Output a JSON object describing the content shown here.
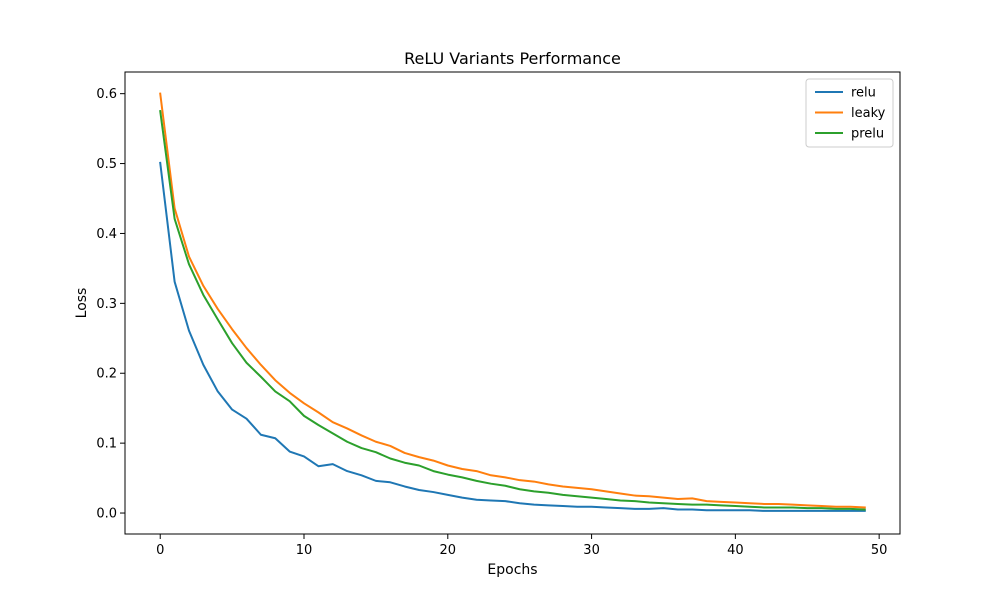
{
  "chart_data": {
    "type": "line",
    "title": "ReLU Variants Performance",
    "xlabel": "Epochs",
    "ylabel": "Loss",
    "xlim": [
      -2.45,
      51.45
    ],
    "ylim": [
      -0.03,
      0.631
    ],
    "x_ticks": [
      0,
      10,
      20,
      30,
      40,
      50
    ],
    "y_ticks": [
      0.0,
      0.1,
      0.2,
      0.3,
      0.4,
      0.5,
      0.6
    ],
    "x_tick_labels": [
      "0",
      "10",
      "20",
      "30",
      "40",
      "50"
    ],
    "y_tick_labels": [
      "0.0",
      "0.1",
      "0.2",
      "0.3",
      "0.4",
      "0.5",
      "0.6"
    ],
    "grid": false,
    "legend_position": "top-right",
    "x": [
      0,
      1,
      2,
      3,
      4,
      5,
      6,
      7,
      8,
      9,
      10,
      11,
      12,
      13,
      14,
      15,
      16,
      17,
      18,
      19,
      20,
      21,
      22,
      23,
      24,
      25,
      26,
      27,
      28,
      29,
      30,
      31,
      32,
      33,
      34,
      35,
      36,
      37,
      38,
      39,
      40,
      41,
      42,
      43,
      44,
      45,
      46,
      47,
      48,
      49
    ],
    "series": [
      {
        "name": "relu",
        "color": "#1f77b4",
        "values": [
          0.501,
          0.331,
          0.261,
          0.212,
          0.174,
          0.148,
          0.135,
          0.112,
          0.107,
          0.088,
          0.081,
          0.067,
          0.07,
          0.06,
          0.054,
          0.046,
          0.044,
          0.038,
          0.033,
          0.03,
          0.026,
          0.022,
          0.019,
          0.018,
          0.017,
          0.014,
          0.012,
          0.011,
          0.01,
          0.009,
          0.009,
          0.008,
          0.007,
          0.006,
          0.006,
          0.007,
          0.005,
          0.005,
          0.004,
          0.004,
          0.004,
          0.004,
          0.003,
          0.003,
          0.003,
          0.003,
          0.003,
          0.003,
          0.003,
          0.003
        ]
      },
      {
        "name": "leaky",
        "color": "#ff7f0e",
        "values": [
          0.6,
          0.436,
          0.367,
          0.325,
          0.292,
          0.263,
          0.236,
          0.212,
          0.19,
          0.172,
          0.157,
          0.144,
          0.13,
          0.121,
          0.111,
          0.102,
          0.096,
          0.086,
          0.08,
          0.075,
          0.068,
          0.063,
          0.06,
          0.054,
          0.051,
          0.047,
          0.045,
          0.041,
          0.038,
          0.036,
          0.034,
          0.031,
          0.028,
          0.025,
          0.024,
          0.022,
          0.02,
          0.021,
          0.017,
          0.016,
          0.015,
          0.014,
          0.013,
          0.013,
          0.012,
          0.011,
          0.01,
          0.009,
          0.009,
          0.008
        ]
      },
      {
        "name": "prelu",
        "color": "#2ca02c",
        "values": [
          0.575,
          0.421,
          0.356,
          0.312,
          0.277,
          0.243,
          0.215,
          0.195,
          0.174,
          0.16,
          0.139,
          0.126,
          0.114,
          0.102,
          0.093,
          0.087,
          0.078,
          0.072,
          0.068,
          0.06,
          0.055,
          0.051,
          0.046,
          0.042,
          0.039,
          0.034,
          0.031,
          0.029,
          0.026,
          0.024,
          0.022,
          0.02,
          0.018,
          0.017,
          0.015,
          0.014,
          0.013,
          0.012,
          0.012,
          0.011,
          0.01,
          0.009,
          0.008,
          0.008,
          0.008,
          0.007,
          0.007,
          0.006,
          0.006,
          0.005
        ]
      }
    ]
  }
}
